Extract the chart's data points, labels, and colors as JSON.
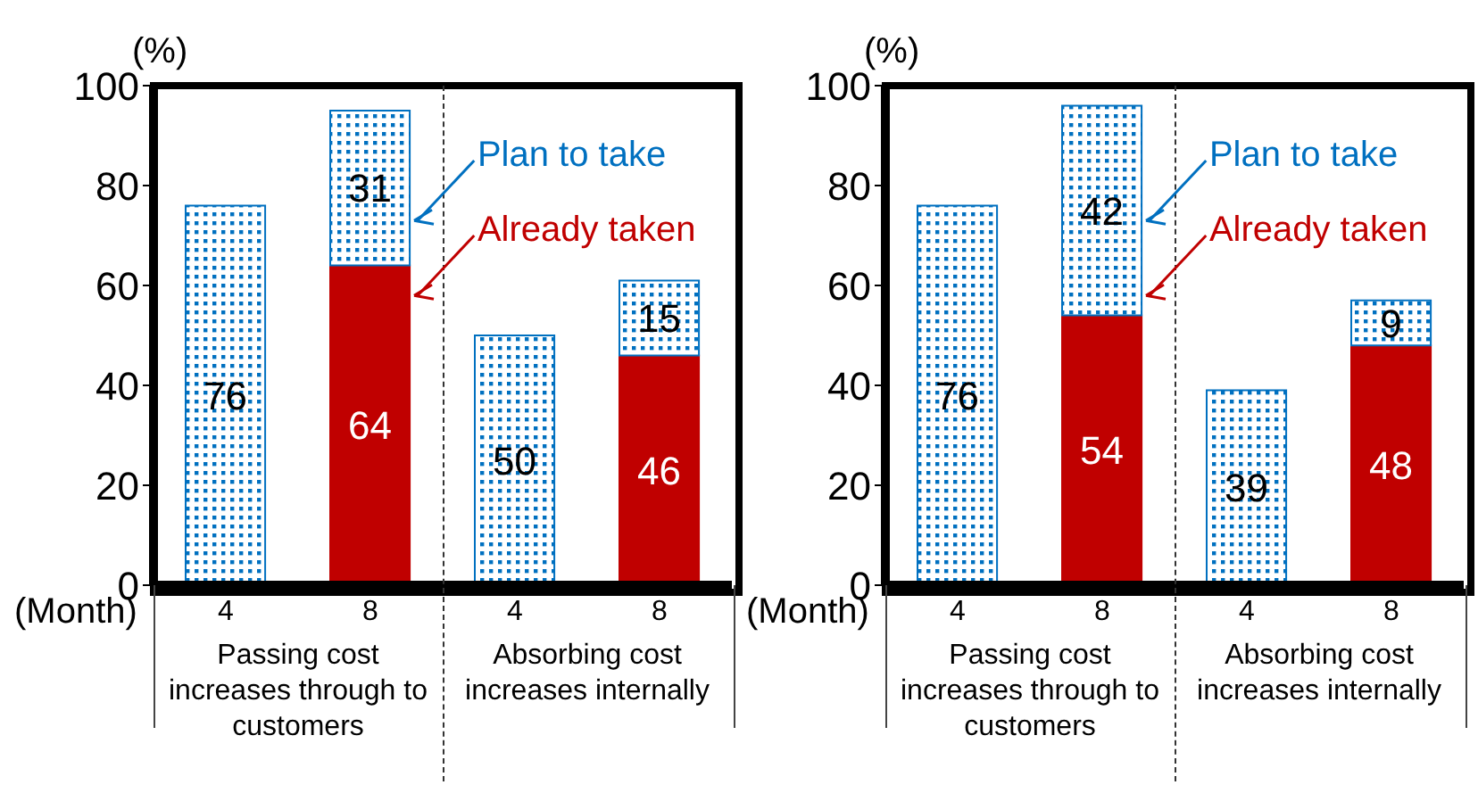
{
  "chart_data": [
    {
      "type": "bar",
      "stacked": true,
      "ylabel": "(%)",
      "xlabel": "(Month)",
      "categories": [
        "4",
        "8",
        "4",
        "8"
      ],
      "ylim": [
        0,
        100
      ],
      "yticks": [
        0,
        20,
        40,
        60,
        80,
        100
      ],
      "data_labels": true,
      "series": [
        {
          "name": "Already taken",
          "color": "#c00000",
          "values": [
            null,
            64,
            null,
            46
          ]
        },
        {
          "name": "Plan to take",
          "color": "#0070c0",
          "values": [
            76,
            31,
            50,
            15
          ]
        }
      ],
      "annotations": [
        "Passing cost increases through to customers",
        "Absorbing cost increases internally"
      ]
    },
    {
      "type": "bar",
      "stacked": true,
      "ylabel": "(%)",
      "xlabel": "(Month)",
      "categories": [
        "4",
        "8",
        "4",
        "8"
      ],
      "ylim": [
        0,
        100
      ],
      "yticks": [
        0,
        20,
        40,
        60,
        80,
        100
      ],
      "data_labels": true,
      "series": [
        {
          "name": "Already taken",
          "color": "#c00000",
          "values": [
            null,
            54,
            null,
            48
          ]
        },
        {
          "name": "Plan to take",
          "color": "#0070c0",
          "values": [
            76,
            42,
            39,
            9
          ]
        }
      ],
      "annotations": [
        "Passing cost increases through to customers",
        "Absorbing cost increases internally"
      ]
    }
  ]
}
